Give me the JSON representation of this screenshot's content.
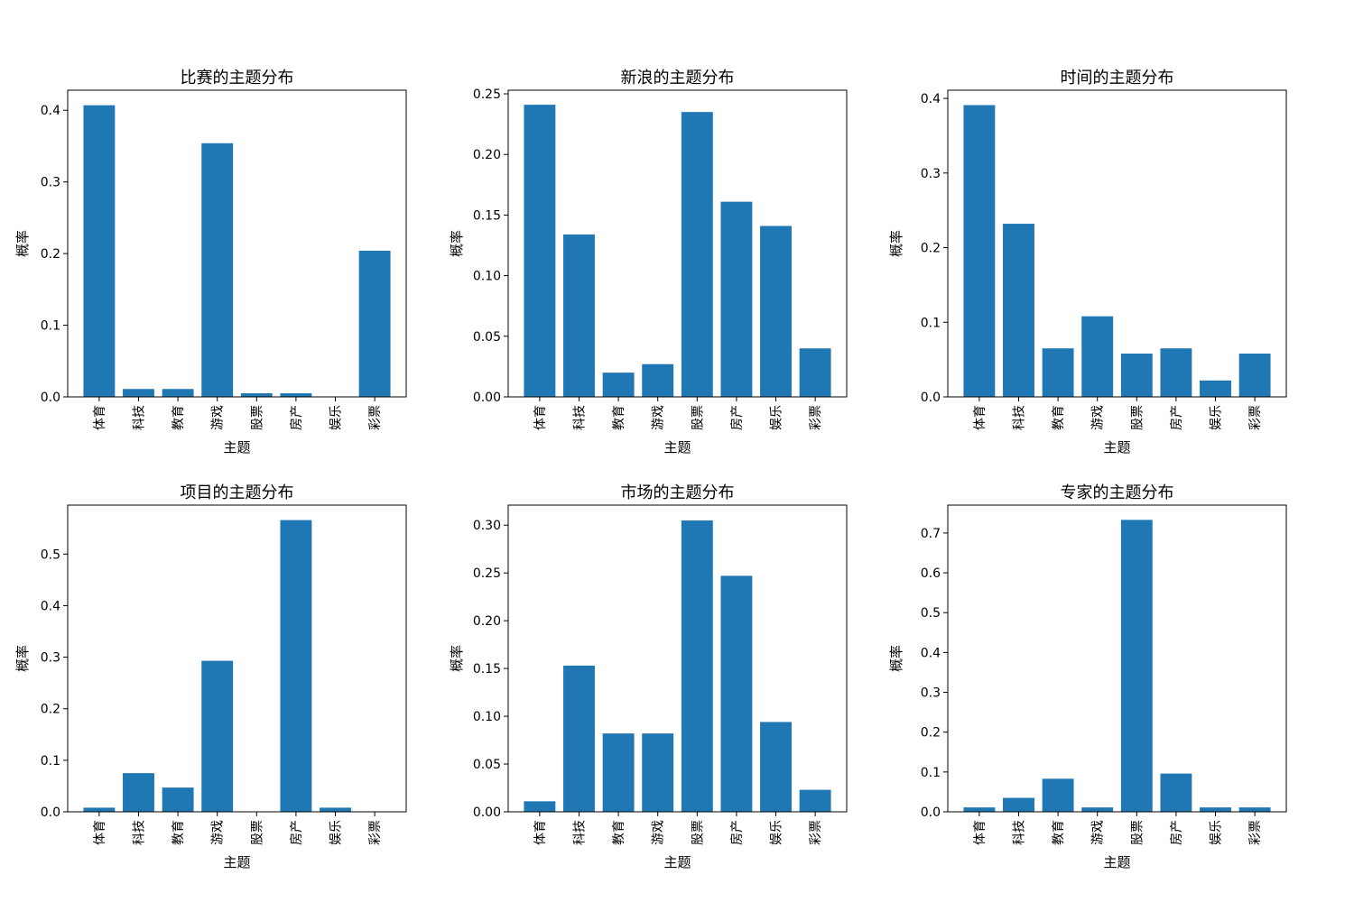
{
  "chart_data": [
    {
      "type": "bar",
      "title": "比赛的主题分布",
      "xlabel": "主题",
      "ylabel": "概率",
      "categories": [
        "体育",
        "科技",
        "教育",
        "游戏",
        "股票",
        "房产",
        "娱乐",
        "彩票"
      ],
      "values": [
        0.407,
        0.011,
        0.011,
        0.354,
        0.005,
        0.005,
        0.0,
        0.204
      ],
      "ylim": [
        0,
        0.428
      ],
      "yticks": [
        0.0,
        0.1,
        0.2,
        0.3,
        0.4
      ],
      "ytick_labels": [
        "0.0",
        "0.1",
        "0.2",
        "0.3",
        "0.4"
      ],
      "color": "#1f77b4"
    },
    {
      "type": "bar",
      "title": "新浪的主题分布",
      "xlabel": "主题",
      "ylabel": "概率",
      "categories": [
        "体育",
        "科技",
        "教育",
        "游戏",
        "股票",
        "房产",
        "娱乐",
        "彩票"
      ],
      "values": [
        0.241,
        0.134,
        0.02,
        0.027,
        0.235,
        0.161,
        0.141,
        0.04
      ],
      "ylim": [
        0,
        0.253
      ],
      "yticks": [
        0.0,
        0.05,
        0.1,
        0.15,
        0.2,
        0.25
      ],
      "ytick_labels": [
        "0.00",
        "0.05",
        "0.10",
        "0.15",
        "0.20",
        "0.25"
      ],
      "color": "#1f77b4"
    },
    {
      "type": "bar",
      "title": "时间的主题分布",
      "xlabel": "主题",
      "ylabel": "概率",
      "categories": [
        "体育",
        "科技",
        "教育",
        "游戏",
        "股票",
        "房产",
        "娱乐",
        "彩票"
      ],
      "values": [
        0.391,
        0.232,
        0.065,
        0.108,
        0.058,
        0.065,
        0.022,
        0.058
      ],
      "ylim": [
        0,
        0.411
      ],
      "yticks": [
        0.0,
        0.1,
        0.2,
        0.3,
        0.4
      ],
      "ytick_labels": [
        "0.0",
        "0.1",
        "0.2",
        "0.3",
        "0.4"
      ],
      "color": "#1f77b4"
    },
    {
      "type": "bar",
      "title": "项目的主题分布",
      "xlabel": "主题",
      "ylabel": "概率",
      "categories": [
        "体育",
        "科技",
        "教育",
        "游戏",
        "股票",
        "房产",
        "娱乐",
        "彩票"
      ],
      "values": [
        0.008,
        0.075,
        0.047,
        0.293,
        0.0,
        0.566,
        0.008,
        0.0
      ],
      "ylim": [
        0,
        0.595
      ],
      "yticks": [
        0.0,
        0.1,
        0.2,
        0.3,
        0.4,
        0.5
      ],
      "ytick_labels": [
        "0.0",
        "0.1",
        "0.2",
        "0.3",
        "0.4",
        "0.5"
      ],
      "color": "#1f77b4"
    },
    {
      "type": "bar",
      "title": "市场的主题分布",
      "xlabel": "主题",
      "ylabel": "概率",
      "categories": [
        "体育",
        "科技",
        "教育",
        "游戏",
        "股票",
        "房产",
        "娱乐",
        "彩票"
      ],
      "values": [
        0.011,
        0.153,
        0.082,
        0.082,
        0.305,
        0.247,
        0.094,
        0.023
      ],
      "ylim": [
        0,
        0.321
      ],
      "yticks": [
        0.0,
        0.05,
        0.1,
        0.15,
        0.2,
        0.25,
        0.3
      ],
      "ytick_labels": [
        "0.00",
        "0.05",
        "0.10",
        "0.15",
        "0.20",
        "0.25",
        "0.30"
      ],
      "color": "#1f77b4"
    },
    {
      "type": "bar",
      "title": "专家的主题分布",
      "xlabel": "主题",
      "ylabel": "概率",
      "categories": [
        "体育",
        "科技",
        "教育",
        "游戏",
        "股票",
        "房产",
        "娱乐",
        "彩票"
      ],
      "values": [
        0.011,
        0.035,
        0.083,
        0.011,
        0.733,
        0.096,
        0.011,
        0.011
      ],
      "ylim": [
        0,
        0.77
      ],
      "yticks": [
        0.0,
        0.1,
        0.2,
        0.3,
        0.4,
        0.5,
        0.6,
        0.7
      ],
      "ytick_labels": [
        "0.0",
        "0.1",
        "0.2",
        "0.3",
        "0.4",
        "0.5",
        "0.6",
        "0.7"
      ],
      "color": "#1f77b4"
    }
  ]
}
